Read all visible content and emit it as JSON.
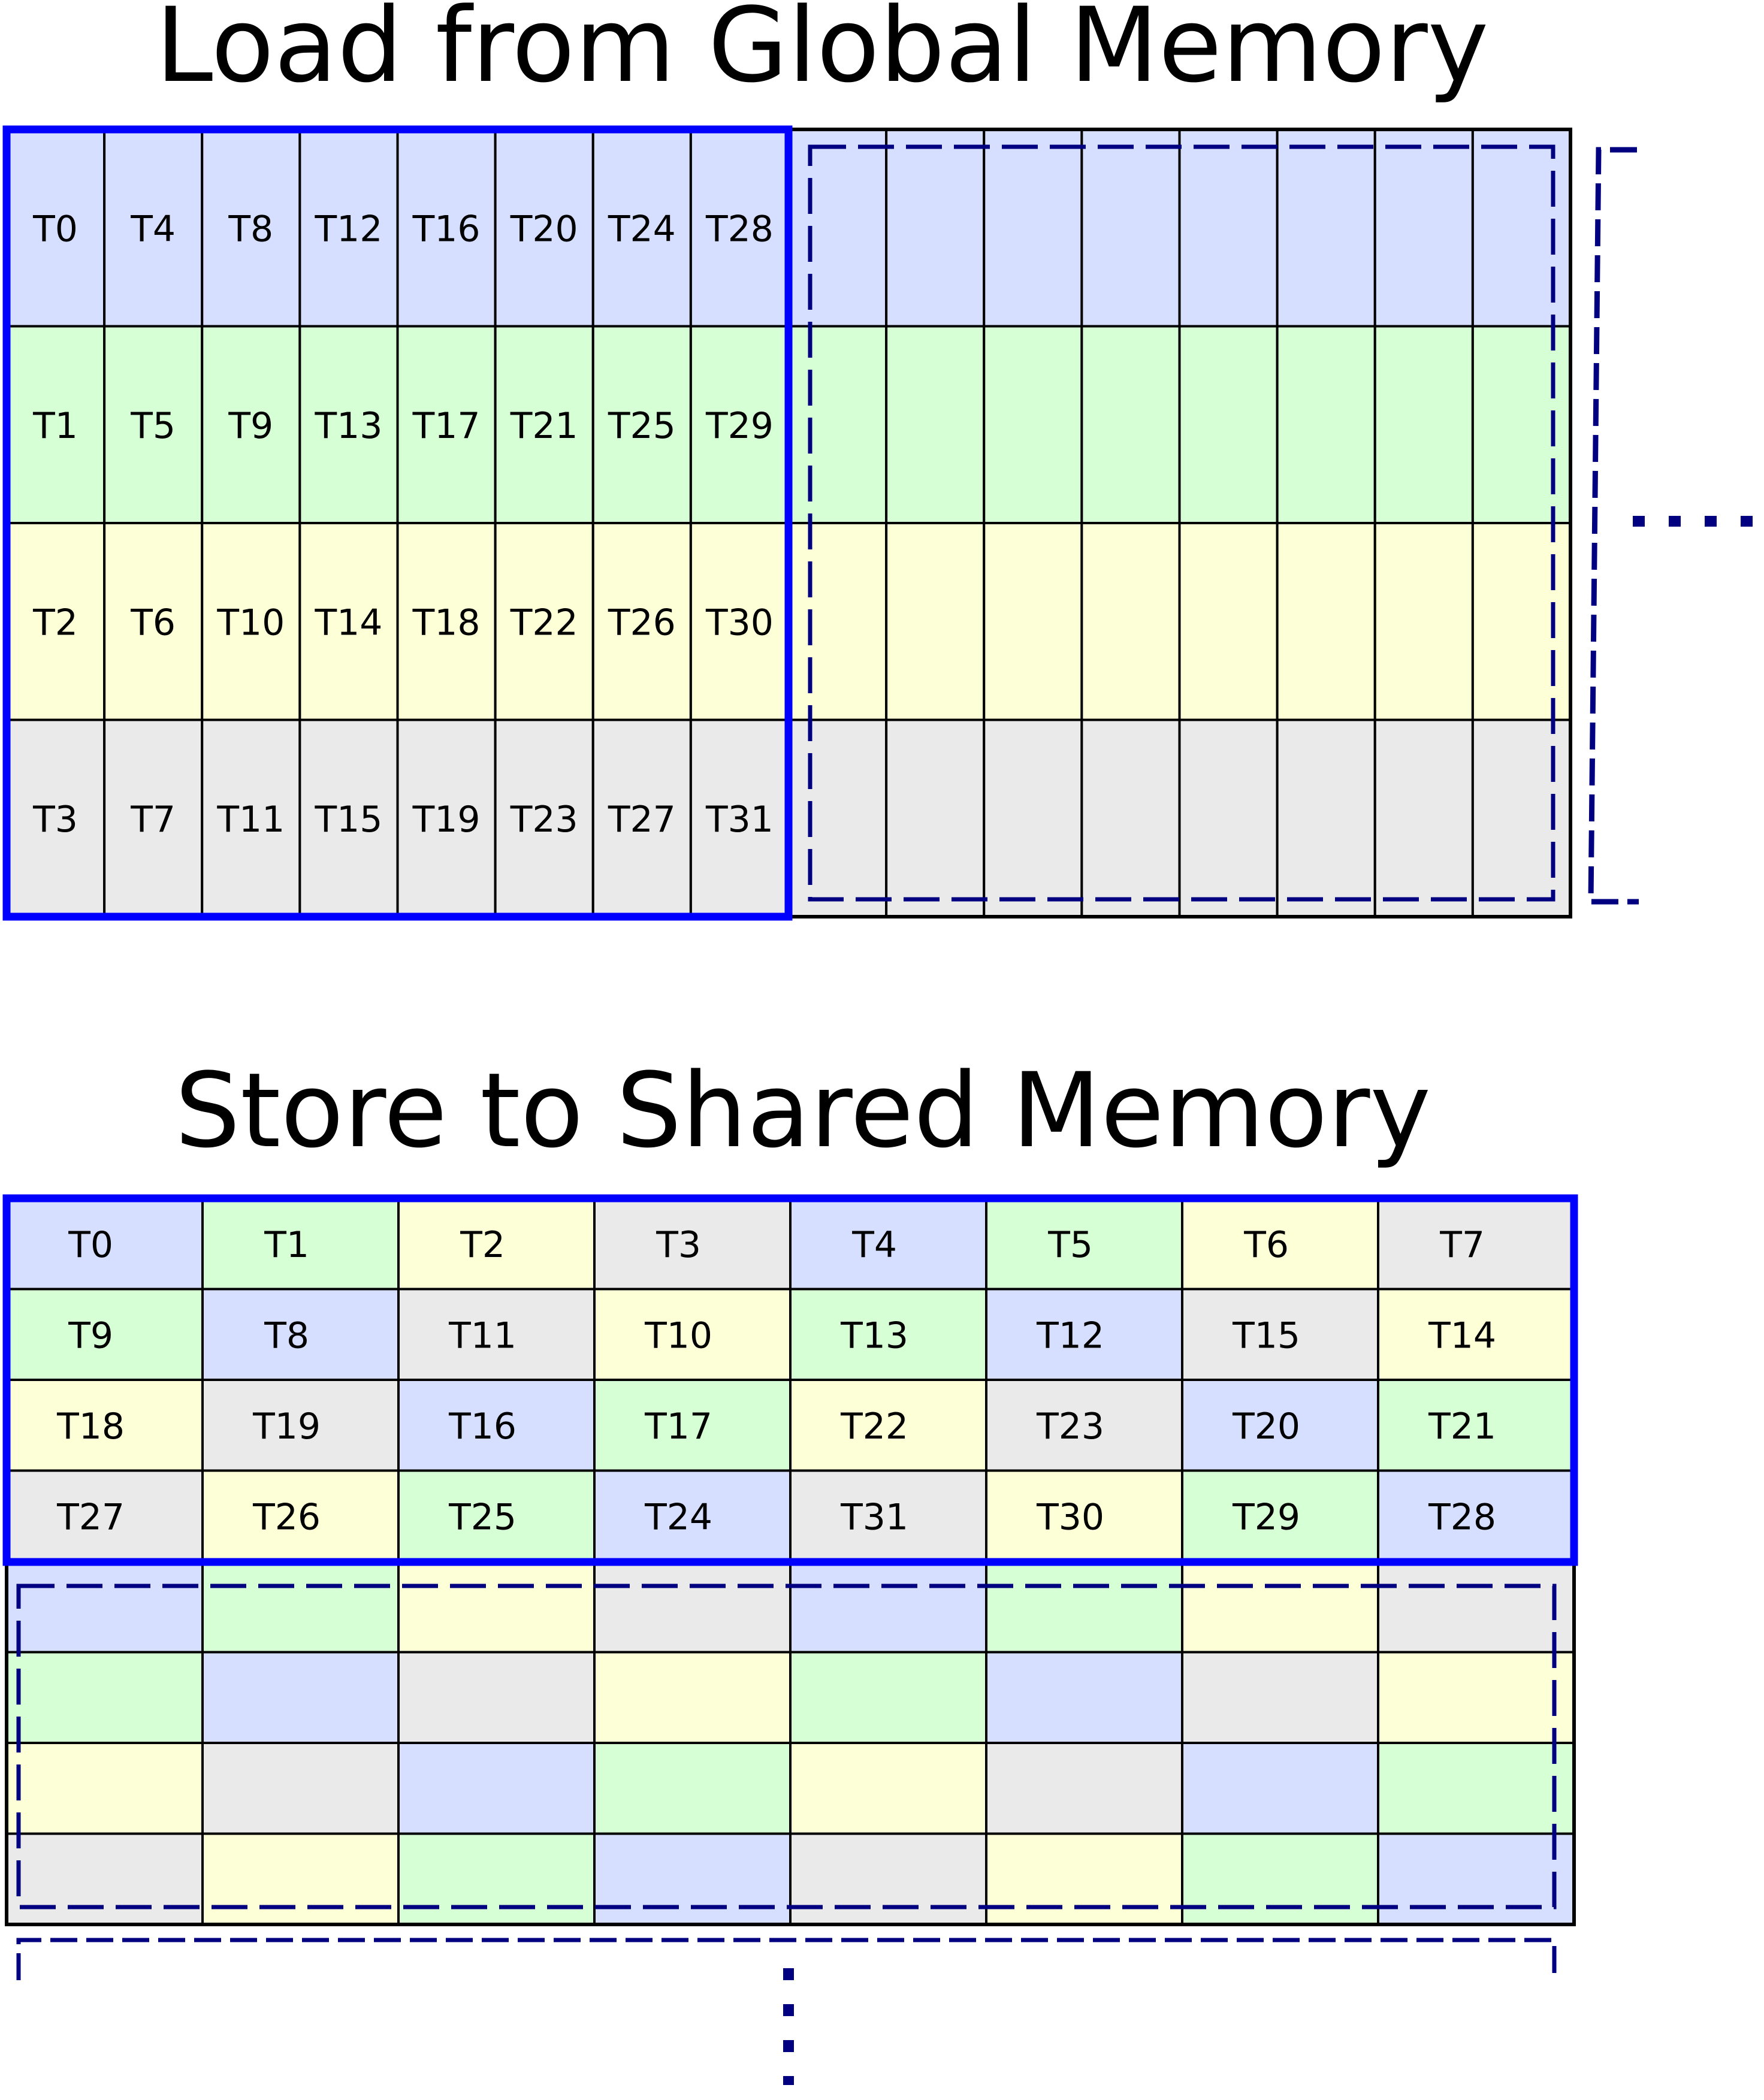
{
  "titles": {
    "load": "Load from Global Memory",
    "store": "Store to Shared Memory"
  },
  "colors": {
    "blue": "#d6dfff",
    "green": "#d6ffd6",
    "yellow": "#fdffd6",
    "gray": "#eaeaea",
    "highlight_border": "#0000ff",
    "dashed_outline": "#000080",
    "grid_line": "#000000"
  },
  "load_grid": {
    "row_colors": [
      "blue",
      "green",
      "yellow",
      "gray"
    ],
    "labels": [
      [
        "T0",
        "T4",
        "T8",
        "T12",
        "T16",
        "T20",
        "T24",
        "T28"
      ],
      [
        "T1",
        "T5",
        "T9",
        "T13",
        "T17",
        "T21",
        "T25",
        "T29"
      ],
      [
        "T2",
        "T6",
        "T10",
        "T14",
        "T18",
        "T22",
        "T26",
        "T30"
      ],
      [
        "T3",
        "T7",
        "T11",
        "T15",
        "T19",
        "T23",
        "T27",
        "T31"
      ]
    ]
  },
  "store_grid": {
    "cell_colors": [
      [
        "blue",
        "green",
        "yellow",
        "gray",
        "blue",
        "green",
        "yellow",
        "gray"
      ],
      [
        "green",
        "blue",
        "gray",
        "yellow",
        "green",
        "blue",
        "gray",
        "yellow"
      ],
      [
        "yellow",
        "gray",
        "blue",
        "green",
        "yellow",
        "gray",
        "blue",
        "green"
      ],
      [
        "gray",
        "yellow",
        "green",
        "blue",
        "gray",
        "yellow",
        "green",
        "blue"
      ]
    ],
    "labels": [
      [
        "T0",
        "T1",
        "T2",
        "T3",
        "T4",
        "T5",
        "T6",
        "T7"
      ],
      [
        "T9",
        "T8",
        "T11",
        "T10",
        "T13",
        "T12",
        "T15",
        "T14"
      ],
      [
        "T18",
        "T19",
        "T16",
        "T17",
        "T22",
        "T23",
        "T20",
        "T21"
      ],
      [
        "T27",
        "T26",
        "T25",
        "T24",
        "T31",
        "T30",
        "T29",
        "T28"
      ]
    ]
  }
}
